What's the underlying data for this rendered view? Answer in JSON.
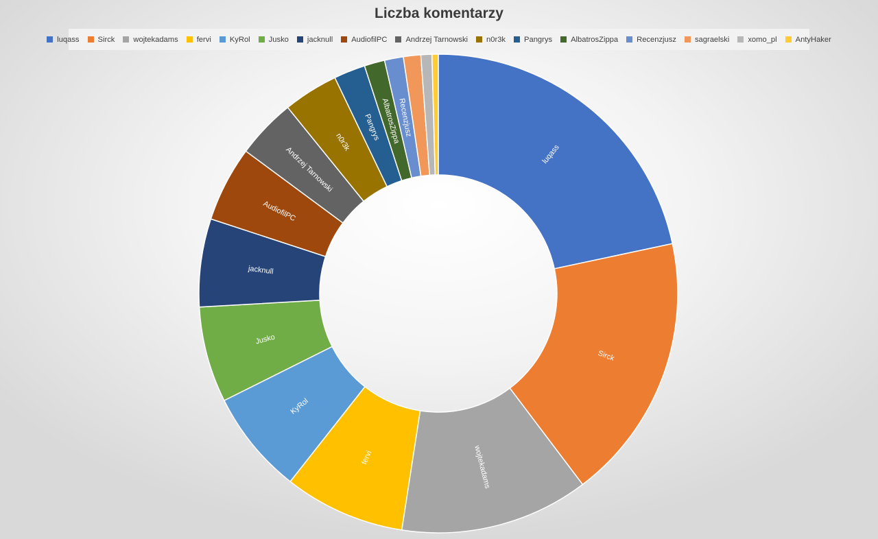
{
  "chart_data": {
    "type": "pie",
    "variant": "donut",
    "title": "Liczba komentarzy",
    "legend_position": "top",
    "categories": [
      "luqass",
      "Sirck",
      "wojtekadams",
      "fervi",
      "KyRol",
      "Jusko",
      "jacknull",
      "AudiofilPC",
      "Andrzej Tarnowski",
      "n0r3k",
      "Pangrys",
      "AlbatrosZippa",
      "Recenzjusz",
      "sagraelski",
      "xomo_pl",
      "AntyHaker"
    ],
    "values": [
      20.4,
      17.0,
      12.0,
      7.7,
      6.6,
      6.1,
      5.6,
      4.8,
      3.8,
      3.5,
      2.0,
      1.3,
      1.2,
      1.1,
      0.7,
      0.4
    ],
    "colors": [
      "#4472C4",
      "#ED7D31",
      "#A5A5A5",
      "#FFC000",
      "#5B9BD5",
      "#70AD47",
      "#264478",
      "#9E480E",
      "#636363",
      "#997300",
      "#255E91",
      "#43682B",
      "#698ED0",
      "#F1975A",
      "#B7B7B7",
      "#FFCD33"
    ],
    "data_labels": [
      "luqass",
      "Sirck",
      "wojtekadams",
      "fervi",
      "KyRol",
      "Jusko",
      "jacknull",
      "AudiofilPC",
      "Andrzej Tarnowski",
      "n0r3k",
      "Pangrys",
      "AlbatrosZippa",
      "Recenzjusz",
      "",
      "",
      ""
    ]
  }
}
